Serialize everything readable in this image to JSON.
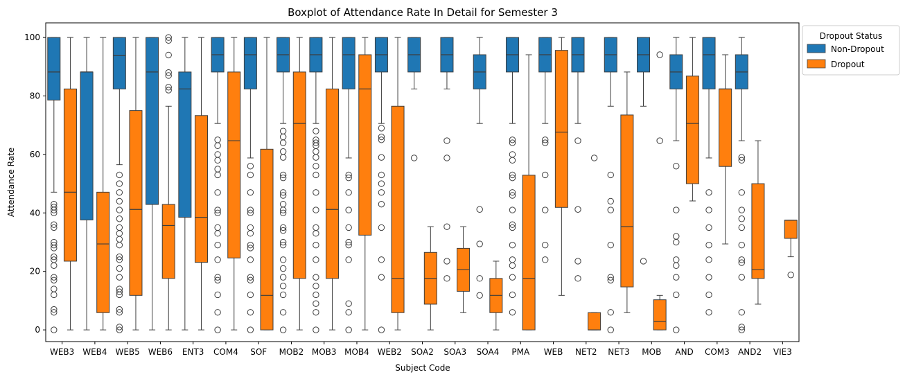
{
  "chart_data": {
    "type": "boxplot",
    "title": "Boxplot of Attendance Rate In Detail for Semester 3",
    "xlabel": "Subject Code",
    "ylabel": "Attendance Rate",
    "ylim": [
      -4,
      105
    ],
    "yticks": [
      0,
      20,
      40,
      60,
      80,
      100
    ],
    "grid": false,
    "legend": {
      "title": "Dropout Status",
      "placement": "upper-right-outside"
    },
    "categories": [
      "WEB3",
      "WEB4",
      "WEB5",
      "WEB6",
      "ENT3",
      "COM4",
      "SOF",
      "MOB2",
      "MOB3",
      "MOB4",
      "WEB2",
      "SOA2",
      "SOA3",
      "SOA4",
      "PMA",
      "WEB",
      "NET2",
      "NET3",
      "MOB",
      "AND",
      "COM3",
      "AND2",
      "VIE3"
    ],
    "series": [
      {
        "name": "Non-Dropout",
        "color": "#1f77b4",
        "boxes": [
          {
            "q1": 78.6,
            "med": 88.2,
            "q3": 100,
            "wlo": 47.1,
            "whi": 100,
            "fliers": [
              43,
              42,
              41,
              40,
              36,
              35,
              30,
              29,
              28,
              25,
              24,
              22,
              18,
              17,
              14,
              12,
              7,
              6,
              0
            ]
          },
          {
            "q1": 37.6,
            "med": 88.2,
            "q3": 88.2,
            "wlo": 0,
            "whi": 100,
            "fliers": []
          },
          {
            "q1": 82.4,
            "med": 93.8,
            "q3": 100,
            "wlo": 56.5,
            "whi": 100,
            "fliers": [
              53,
              50,
              47,
              44,
              41,
              38,
              35,
              33,
              31,
              29,
              25,
              24,
              21,
              18,
              14,
              13,
              12,
              7,
              6,
              1,
              0
            ]
          },
          {
            "q1": 42.9,
            "med": 88.2,
            "q3": 100,
            "wlo": 0,
            "whi": 100,
            "fliers": []
          },
          {
            "q1": 38.5,
            "med": 82.4,
            "q3": 88.2,
            "wlo": 0,
            "whi": 100,
            "fliers": []
          },
          {
            "q1": 88.2,
            "med": 94.1,
            "q3": 100,
            "wlo": 70.6,
            "whi": 100,
            "fliers": [
              65,
              63,
              60,
              58,
              55,
              53,
              47,
              41,
              40,
              35,
              33,
              29,
              24,
              18,
              17,
              12,
              6,
              0
            ]
          },
          {
            "q1": 82.4,
            "med": 94.1,
            "q3": 100,
            "wlo": 58.8,
            "whi": 100,
            "fliers": [
              56,
              53,
              47,
              41,
              40,
              35,
              33,
              29,
              28,
              24,
              18,
              17,
              12,
              6,
              0
            ]
          },
          {
            "q1": 88.2,
            "med": 94.1,
            "q3": 100,
            "wlo": 70.6,
            "whi": 100,
            "fliers": [
              68,
              66,
              64,
              61,
              59,
              53,
              52,
              47,
              46,
              43,
              41,
              40,
              35,
              34,
              30,
              29,
              24,
              21,
              18,
              15,
              12,
              6,
              0
            ]
          },
          {
            "q1": 88.2,
            "med": 94.1,
            "q3": 100,
            "wlo": 70.6,
            "whi": 100,
            "fliers": [
              68,
              65,
              64,
              63,
              61,
              59,
              56,
              53,
              47,
              41,
              35,
              33,
              29,
              24,
              18,
              15,
              12,
              9,
              6,
              0
            ]
          },
          {
            "q1": 82.4,
            "med": 94.1,
            "q3": 100,
            "wlo": 58.8,
            "whi": 100,
            "fliers": [
              53,
              52,
              47,
              41,
              35,
              30,
              29,
              24,
              9,
              6,
              0
            ]
          },
          {
            "q1": 88.2,
            "med": 94.1,
            "q3": 100,
            "wlo": 70.6,
            "whi": 100,
            "fliers": [
              69,
              66,
              65,
              59,
              53,
              50,
              47,
              43,
              35,
              24,
              18,
              0
            ]
          },
          {
            "q1": 88.2,
            "med": 94.1,
            "q3": 100,
            "wlo": 82.4,
            "whi": 100,
            "fliers": [
              58.8
            ]
          },
          {
            "q1": 88.2,
            "med": 94.1,
            "q3": 100,
            "wlo": 82.4,
            "whi": 100,
            "fliers": [
              64.7,
              58.8,
              35.3,
              23.5,
              17.6
            ]
          },
          {
            "q1": 82.4,
            "med": 88.2,
            "q3": 94.1,
            "wlo": 70.6,
            "whi": 100,
            "fliers": [
              41.2,
              29.4,
              17.6,
              11.8
            ]
          },
          {
            "q1": 88.2,
            "med": 94.1,
            "q3": 100,
            "wlo": 70.6,
            "whi": 100,
            "fliers": [
              65,
              64,
              60,
              58,
              53,
              52,
              47,
              46,
              41,
              36,
              35,
              29,
              24,
              22,
              18,
              12,
              6
            ]
          },
          {
            "q1": 88.2,
            "med": 94.1,
            "q3": 100,
            "wlo": 70.6,
            "whi": 100,
            "fliers": [
              65,
              64,
              53,
              41,
              29,
              24
            ]
          },
          {
            "q1": 88.2,
            "med": 94.1,
            "q3": 100,
            "wlo": 70.6,
            "whi": 100,
            "fliers": [
              64.7,
              41.2,
              23.5,
              17.6
            ]
          },
          {
            "q1": 88.2,
            "med": 94.1,
            "q3": 100,
            "wlo": 76.5,
            "whi": 100,
            "fliers": [
              53,
              44,
              41,
              29,
              18,
              17,
              6,
              0
            ]
          },
          {
            "q1": 88.2,
            "med": 94.1,
            "q3": 100,
            "wlo": 76.5,
            "whi": 100,
            "fliers": [
              23.5
            ]
          },
          {
            "q1": 82.4,
            "med": 88.2,
            "q3": 94.1,
            "wlo": 64.7,
            "whi": 100,
            "fliers": [
              56,
              41,
              32,
              30,
              24,
              22,
              18,
              12,
              0
            ]
          },
          {
            "q1": 82.4,
            "med": 94.1,
            "q3": 100,
            "wlo": 58.8,
            "whi": 100,
            "fliers": [
              47,
              41,
              35,
              29,
              24,
              18,
              12,
              6
            ]
          },
          {
            "q1": 82.4,
            "med": 88.2,
            "q3": 94.1,
            "wlo": 64.7,
            "whi": 100,
            "fliers": [
              59,
              58,
              47,
              41,
              38,
              35,
              29,
              24,
              23,
              18,
              6,
              1,
              0
            ]
          },
          null
        ]
      },
      {
        "name": "Dropout",
        "color": "#ff7f0e",
        "boxes": [
          {
            "q1": 23.5,
            "med": 47.1,
            "q3": 82.4,
            "wlo": 0,
            "whi": 100,
            "fliers": []
          },
          {
            "q1": 5.9,
            "med": 29.4,
            "q3": 47.1,
            "wlo": 0,
            "whi": 100,
            "fliers": []
          },
          {
            "q1": 11.8,
            "med": 41.2,
            "q3": 75,
            "wlo": 0,
            "whi": 100,
            "fliers": []
          },
          {
            "q1": 17.6,
            "med": 35.7,
            "q3": 42.9,
            "wlo": 0,
            "whi": 76.5,
            "fliers": [
              100,
              99,
              94,
              88,
              87,
              83,
              82
            ]
          },
          {
            "q1": 23.1,
            "med": 38.5,
            "q3": 73.3,
            "wlo": 0,
            "whi": 100,
            "fliers": []
          },
          {
            "q1": 24.6,
            "med": 64.7,
            "q3": 88.2,
            "wlo": 0,
            "whi": 100,
            "fliers": []
          },
          {
            "q1": 0,
            "med": 11.8,
            "q3": 61.8,
            "wlo": 0,
            "whi": 100,
            "fliers": []
          },
          {
            "q1": 17.6,
            "med": 70.6,
            "q3": 88.2,
            "wlo": 0,
            "whi": 100,
            "fliers": []
          },
          {
            "q1": 17.6,
            "med": 41.2,
            "q3": 82.4,
            "wlo": 0,
            "whi": 100,
            "fliers": []
          },
          {
            "q1": 32.4,
            "med": 82.4,
            "q3": 94.1,
            "wlo": 0,
            "whi": 100,
            "fliers": []
          },
          {
            "q1": 5.9,
            "med": 17.6,
            "q3": 76.5,
            "wlo": 0,
            "whi": 100,
            "fliers": []
          },
          {
            "q1": 8.8,
            "med": 17.6,
            "q3": 26.5,
            "wlo": 0,
            "whi": 35.3,
            "fliers": []
          },
          {
            "q1": 13.2,
            "med": 20.6,
            "q3": 27.9,
            "wlo": 5.9,
            "whi": 35.3,
            "fliers": []
          },
          {
            "q1": 5.9,
            "med": 11.8,
            "q3": 17.6,
            "wlo": 0,
            "whi": 23.5,
            "fliers": []
          },
          {
            "q1": 0,
            "med": 17.6,
            "q3": 52.9,
            "wlo": 0,
            "whi": 94.1,
            "fliers": []
          },
          {
            "q1": 41.9,
            "med": 67.6,
            "q3": 95.6,
            "wlo": 11.8,
            "whi": 100,
            "fliers": []
          },
          {
            "q1": 0,
            "med": 0,
            "q3": 5.9,
            "wlo": 0,
            "whi": 5.9,
            "fliers": [
              58.8
            ]
          },
          {
            "q1": 14.7,
            "med": 35.3,
            "q3": 73.5,
            "wlo": 5.9,
            "whi": 88.2,
            "fliers": []
          },
          {
            "q1": 0,
            "med": 2.9,
            "q3": 10.3,
            "wlo": 0,
            "whi": 11.8,
            "fliers": [
              94.1,
              64.7
            ]
          },
          {
            "q1": 50,
            "med": 70.6,
            "q3": 86.8,
            "wlo": 44.1,
            "whi": 100,
            "fliers": []
          },
          {
            "q1": 55.9,
            "med": 82.4,
            "q3": 82.4,
            "wlo": 29.4,
            "whi": 94.1,
            "fliers": []
          },
          {
            "q1": 17.6,
            "med": 20.6,
            "q3": 50,
            "wlo": 8.8,
            "whi": 64.7,
            "fliers": []
          },
          {
            "q1": 31.3,
            "med": 37.5,
            "q3": 37.5,
            "wlo": 25,
            "whi": 37.5,
            "fliers": [
              18.8
            ]
          }
        ]
      }
    ]
  }
}
